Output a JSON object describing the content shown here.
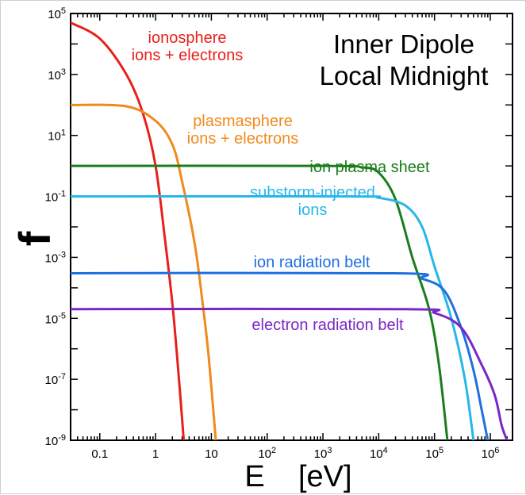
{
  "chart_data": {
    "type": "line",
    "title_lines": [
      "Inner Dipole",
      "Local Midnight"
    ],
    "xlabel": "E    [eV]",
    "ylabel": "f",
    "x_scale": "log",
    "y_scale": "log",
    "xlim": [
      0.03,
      2500000
    ],
    "ylim": [
      1e-09,
      100000
    ],
    "x_ticks": [
      {
        "value": 0.1,
        "base": "0.1",
        "exp": ""
      },
      {
        "value": 1,
        "base": "1",
        "exp": ""
      },
      {
        "value": 10,
        "base": "10",
        "exp": ""
      },
      {
        "value": 100,
        "base": "10",
        "exp": "2"
      },
      {
        "value": 1000,
        "base": "10",
        "exp": "3"
      },
      {
        "value": 10000,
        "base": "10",
        "exp": "4"
      },
      {
        "value": 100000,
        "base": "10",
        "exp": "5"
      },
      {
        "value": 1000000,
        "base": "10",
        "exp": "6"
      }
    ],
    "y_ticks": [
      {
        "value": 1e-09,
        "base": "10",
        "exp": "-9"
      },
      {
        "value": 1e-07,
        "base": "10",
        "exp": "-7"
      },
      {
        "value": 1e-05,
        "base": "10",
        "exp": "-5"
      },
      {
        "value": 0.001,
        "base": "10",
        "exp": "-3"
      },
      {
        "value": 0.1,
        "base": "10",
        "exp": "-1"
      },
      {
        "value": 10,
        "base": "10",
        "exp": "1"
      },
      {
        "value": 1000,
        "base": "10",
        "exp": "3"
      },
      {
        "value": 100000,
        "base": "10",
        "exp": "5"
      }
    ],
    "grid": false,
    "series": [
      {
        "label_lines": [
          "ionosphere",
          "ions + electrons"
        ],
        "color": "#e8201c",
        "points": [
          [
            0.03,
            50000
          ],
          [
            0.1,
            15000
          ],
          [
            0.3,
            1000
          ],
          [
            0.6,
            50
          ],
          [
            1,
            1
          ],
          [
            1.5,
            0.003
          ],
          [
            2,
            3e-05
          ],
          [
            2.5,
            3e-07
          ],
          [
            3.2,
            1e-09
          ]
        ]
      },
      {
        "label_lines": [
          "plasmasphere",
          "ions + electrons"
        ],
        "color": "#f08a1c",
        "points": [
          [
            0.03,
            100
          ],
          [
            0.3,
            90
          ],
          [
            1,
            30
          ],
          [
            2,
            5
          ],
          [
            3,
            0.3
          ],
          [
            5,
            0.003
          ],
          [
            7,
            3e-05
          ],
          [
            9,
            5e-07
          ],
          [
            12,
            1e-09
          ]
        ]
      },
      {
        "label_lines": [
          "ion plasma sheet"
        ],
        "color": "#1a7d1a",
        "points": [
          [
            0.03,
            1
          ],
          [
            1000,
            1
          ],
          [
            5000,
            0.9
          ],
          [
            10000,
            0.6
          ],
          [
            20000,
            0.08
          ],
          [
            40000,
            0.001
          ],
          [
            80000,
            2e-05
          ],
          [
            120000,
            3e-07
          ],
          [
            170000,
            1e-09
          ]
        ]
      },
      {
        "label_lines": [
          "substorm-injected",
          "ions"
        ],
        "color": "#26b7ea",
        "points": [
          [
            0.03,
            0.1
          ],
          [
            3000,
            0.1
          ],
          [
            10000,
            0.09
          ],
          [
            30000,
            0.05
          ],
          [
            60000,
            0.01
          ],
          [
            100000,
            0.0005
          ],
          [
            200000,
            1e-05
          ],
          [
            350000,
            1e-07
          ],
          [
            500000,
            1e-09
          ]
        ]
      },
      {
        "label_lines": [
          "ion radiation belt"
        ],
        "color": "#1f6fe0",
        "points": [
          [
            0.03,
            0.0003
          ],
          [
            20000,
            0.0003
          ],
          [
            60000,
            0.0002
          ],
          [
            150000,
            8e-05
          ],
          [
            300000,
            5e-06
          ],
          [
            500000,
            2e-07
          ],
          [
            700000,
            1e-08
          ],
          [
            900000,
            1e-09
          ]
        ]
      },
      {
        "label_lines": [
          "electron radiation belt"
        ],
        "color": "#7a27c4",
        "points": [
          [
            0.03,
            2e-05
          ],
          [
            30000,
            2e-05
          ],
          [
            100000,
            1.5e-05
          ],
          [
            300000,
            5e-06
          ],
          [
            700000,
            3e-07
          ],
          [
            1200000,
            3e-08
          ],
          [
            1600000,
            3e-09
          ],
          [
            2000000,
            1e-09
          ]
        ]
      }
    ]
  }
}
